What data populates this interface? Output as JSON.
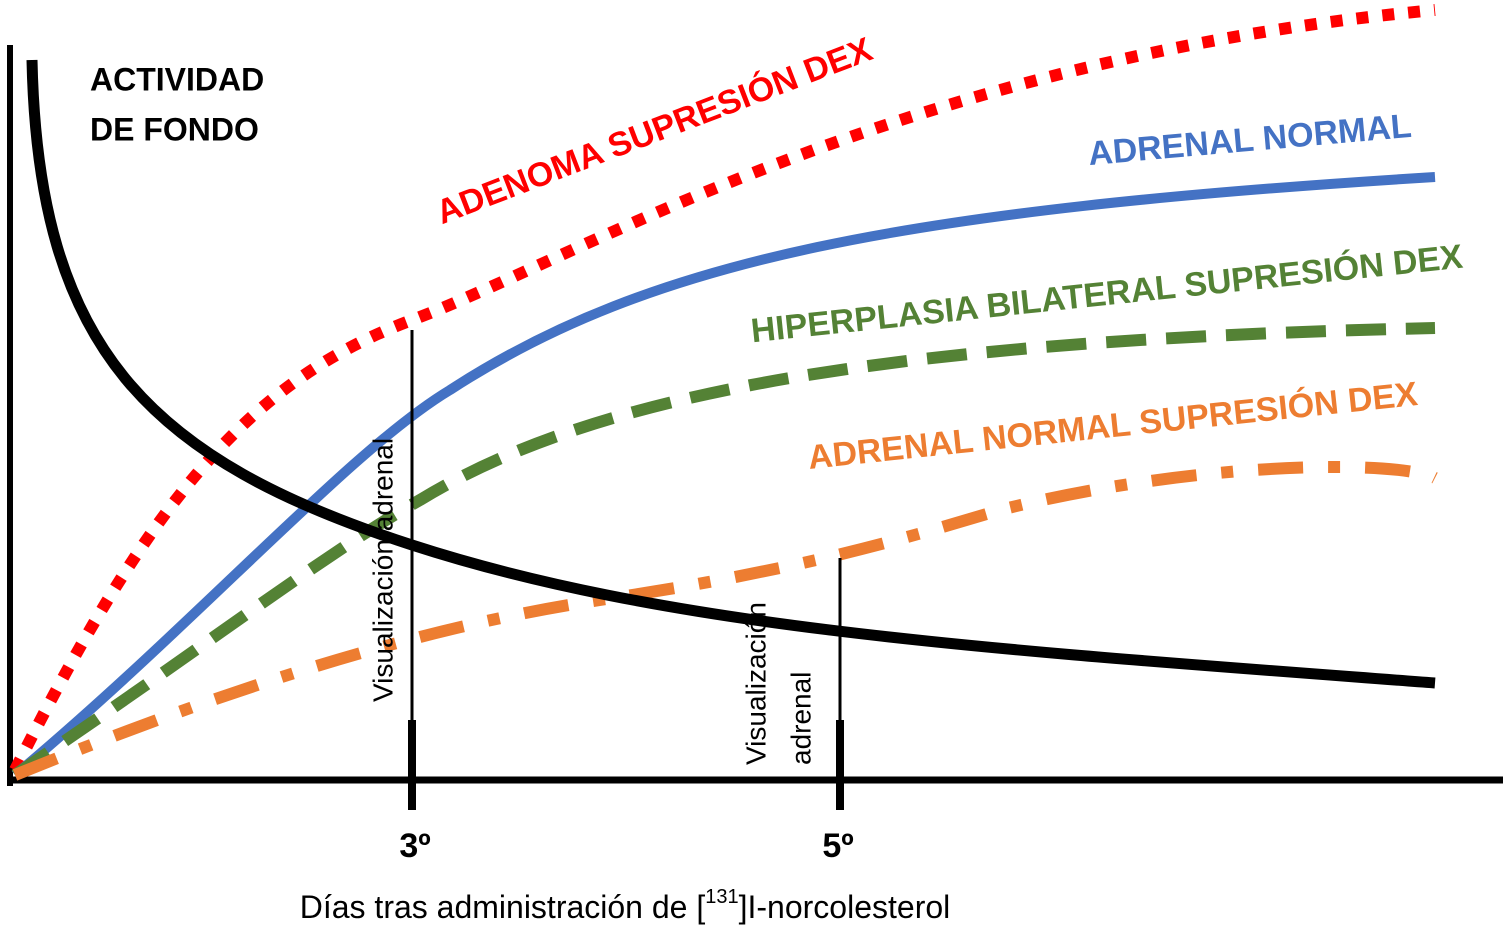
{
  "labels": {
    "background": [
      "ACTIVIDAD",
      "DE FONDO"
    ],
    "adenoma": "ADENOMA SUPRESIÓN DEX",
    "normal": "ADRENAL NORMAL",
    "hyperplasia": "HIPERPLASIA BILATERAL SUPRESIÓN DEX",
    "normal_suppressed": "ADRENAL NORMAL SUPRESIÓN DEX"
  },
  "markers": [
    {
      "label": "Visualización adrenal",
      "tick": "3º"
    },
    {
      "label": [
        "Visualización",
        "adrenal"
      ],
      "tick": "5º"
    }
  ],
  "x_axis_label": {
    "before": "Días tras administración de [",
    "superscript": "131",
    "after": "]I-norcolesterol"
  }
}
